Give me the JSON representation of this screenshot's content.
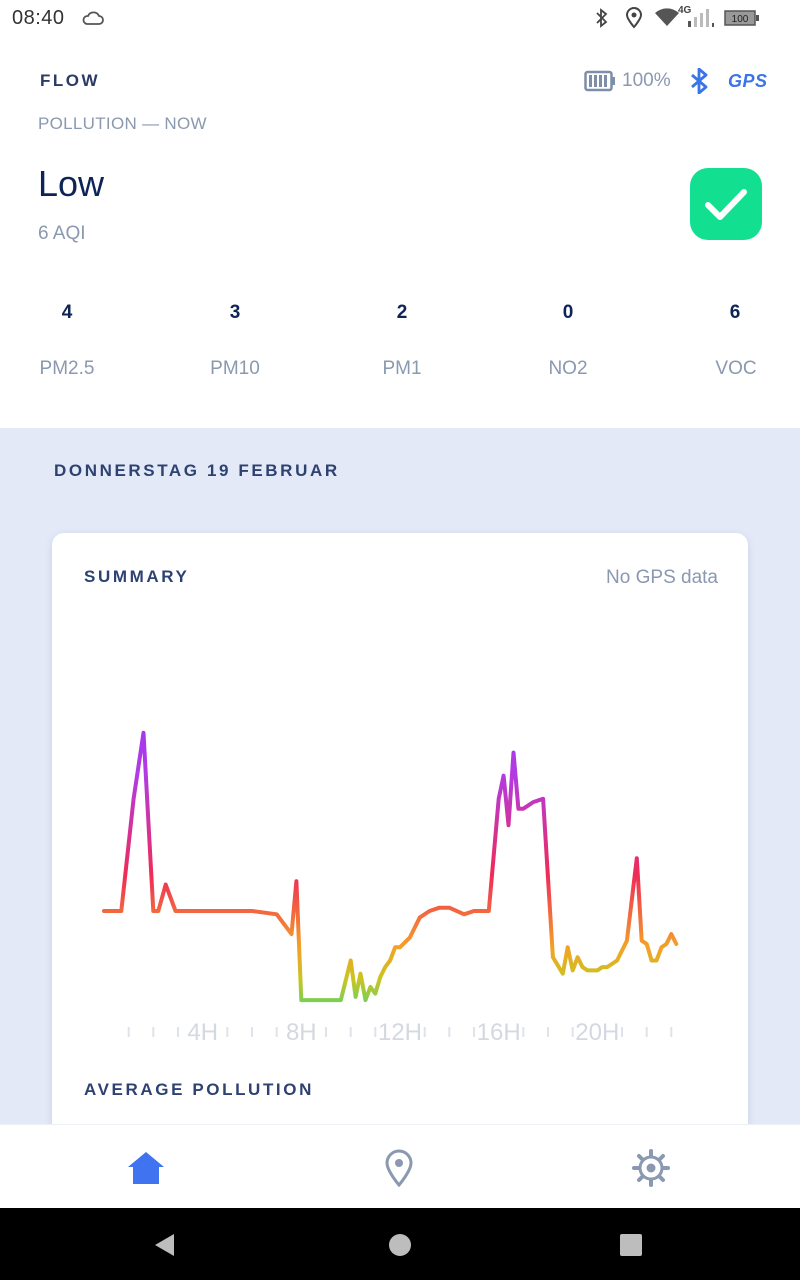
{
  "status_bar": {
    "time": "08:40",
    "battery_text": "100",
    "network_text": "4G"
  },
  "header": {
    "app_title": "FLOW",
    "battery_percent": "100%",
    "gps_label": "GPS"
  },
  "pollution_now": {
    "caption": "POLLUTION — NOW",
    "level": "Low",
    "aqi": "6 AQI",
    "status_icon": "check-icon",
    "status_color": "#12df90"
  },
  "metrics": [
    {
      "value": "4",
      "label": "PM2.5"
    },
    {
      "value": "3",
      "label": "PM10"
    },
    {
      "value": "2",
      "label": "PM1"
    },
    {
      "value": "0",
      "label": "NO2"
    },
    {
      "value": "6",
      "label": "VOC"
    }
  ],
  "day": {
    "title": "DONNERSTAG 19 FEBRUAR"
  },
  "summary": {
    "title": "SUMMARY",
    "gps_status": "No GPS data"
  },
  "average": {
    "title": "AVERAGE POLLUTION"
  },
  "chart_data": {
    "type": "line",
    "x_ticks": [
      "4H",
      "8H",
      "12H",
      "16H",
      "20H"
    ],
    "x_range": [
      0,
      24
    ],
    "y_range": [
      0,
      100
    ],
    "x": [
      0.0,
      0.7,
      1.2,
      1.6,
      2.0,
      2.2,
      2.5,
      2.9,
      3.1,
      3.3,
      3.6,
      4.0,
      5.0,
      6.0,
      7.0,
      7.6,
      7.8,
      8.0,
      8.2,
      8.4,
      8.6,
      9.0,
      9.6,
      10.0,
      10.2,
      10.4,
      10.6,
      10.8,
      11.0,
      11.2,
      11.4,
      11.6,
      11.8,
      12.0,
      12.4,
      12.8,
      13.2,
      13.6,
      14.0,
      14.6,
      15.0,
      15.6,
      16.0,
      16.2,
      16.4,
      16.6,
      16.8,
      17.0,
      17.2,
      17.4,
      17.8,
      18.2,
      18.6,
      18.8,
      19.0,
      19.2,
      19.4,
      19.6,
      19.8,
      20.0,
      20.2,
      20.4,
      20.8,
      21.2,
      21.6,
      21.8,
      22.0,
      22.2,
      22.4,
      22.6,
      22.8,
      23.0,
      23.2
    ],
    "values": [
      30,
      30,
      64,
      84,
      30,
      30,
      38,
      30,
      30,
      30,
      30,
      30,
      30,
      30,
      29,
      23,
      39,
      3,
      3,
      3,
      3,
      3,
      3,
      15,
      4,
      11,
      3,
      7,
      5,
      10,
      13,
      15,
      19,
      19,
      22,
      28,
      30,
      31,
      31,
      29,
      30,
      30,
      64,
      71,
      56,
      78,
      61,
      61,
      62,
      63,
      64,
      16,
      11,
      19,
      12,
      16,
      13,
      12,
      12,
      12,
      13,
      13,
      15,
      21,
      46,
      21,
      20,
      15,
      15,
      19,
      20,
      23,
      20
    ]
  },
  "nav": {
    "items": [
      {
        "icon": "home-icon",
        "active": true
      },
      {
        "icon": "location-pin-icon",
        "active": false
      },
      {
        "icon": "gear-icon",
        "active": false
      }
    ],
    "active_color": "#3f73f0",
    "inactive_color": "#8a98b0"
  }
}
